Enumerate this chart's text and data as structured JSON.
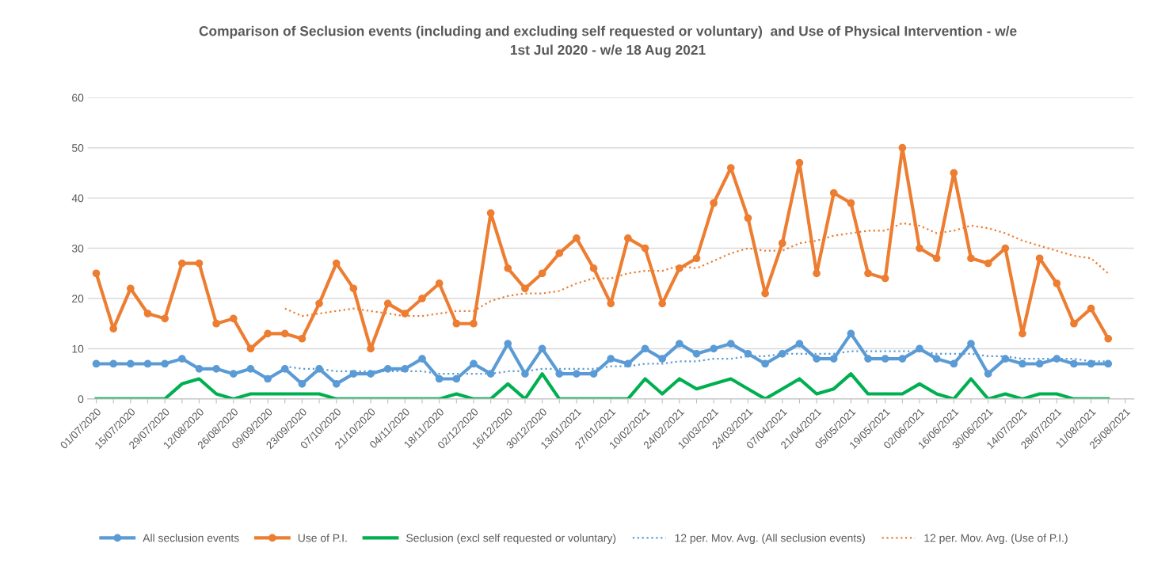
{
  "chart_data": {
    "type": "line",
    "title": "Comparison of Seclusion events (including and excluding self requested or voluntary)  and Use of Physical Intervention - w/e\n1st Jul 2020 - w/e 18 Aug 2021",
    "categories": [
      "01/07/2020",
      null,
      "15/07/2020",
      null,
      "29/07/2020",
      null,
      "12/08/2020",
      null,
      "26/08/2020",
      null,
      "09/09/2020",
      null,
      "23/09/2020",
      null,
      "07/10/2020",
      null,
      "21/10/2020",
      null,
      "04/11/2020",
      null,
      "18/11/2020",
      null,
      "02/12/2020",
      null,
      "16/12/2020",
      null,
      "30/12/2020",
      null,
      "13/01/2021",
      null,
      "27/01/2021",
      null,
      "10/02/2021",
      null,
      "24/02/2021",
      null,
      "10/03/2021",
      null,
      "24/03/2021",
      null,
      "07/04/2021",
      null,
      "21/04/2021",
      null,
      "05/05/2021",
      null,
      "19/05/2021",
      null,
      "02/06/2021",
      null,
      "16/06/2021",
      null,
      "30/06/2021",
      null,
      "14/07/2021",
      null,
      "28/07/2021",
      null,
      "11/08/2021",
      null,
      "25/08/2021"
    ],
    "series": [
      {
        "name": "All seclusion events",
        "color": "#5b9bd5",
        "marker": "circle",
        "line_style": "solid",
        "values": [
          7,
          7,
          7,
          7,
          7,
          8,
          6,
          6,
          5,
          6,
          4,
          6,
          3,
          6,
          3,
          5,
          5,
          6,
          6,
          8,
          4,
          4,
          7,
          5,
          11,
          5,
          10,
          5,
          5,
          5,
          8,
          7,
          10,
          8,
          11,
          9,
          10,
          11,
          9,
          7,
          9,
          11,
          8,
          8,
          13,
          8,
          8,
          8,
          10,
          8,
          7,
          11,
          5,
          8,
          7,
          7,
          8,
          7,
          7,
          7,
          null
        ]
      },
      {
        "name": "Use of P.I.",
        "color": "#ed7d31",
        "marker": "circle",
        "line_style": "solid",
        "values": [
          25,
          14,
          22,
          17,
          16,
          27,
          27,
          15,
          16,
          10,
          13,
          13,
          12,
          19,
          27,
          22,
          10,
          19,
          17,
          20,
          23,
          15,
          15,
          37,
          26,
          22,
          25,
          29,
          32,
          26,
          19,
          32,
          30,
          19,
          26,
          28,
          39,
          46,
          36,
          21,
          31,
          47,
          25,
          41,
          39,
          25,
          24,
          50,
          30,
          28,
          45,
          28,
          27,
          30,
          13,
          28,
          23,
          15,
          18,
          12,
          null
        ]
      },
      {
        "name": "Seclusion (excl self requested or voluntary)",
        "color": "#00b050",
        "marker": "none",
        "line_style": "solid",
        "values": [
          0,
          0,
          0,
          0,
          0,
          3,
          4,
          1,
          0,
          1,
          1,
          1,
          1,
          1,
          0,
          0,
          0,
          0,
          0,
          0,
          0,
          1,
          0,
          0,
          3,
          0,
          5,
          0,
          0,
          0,
          0,
          0,
          4,
          1,
          4,
          2,
          3,
          4,
          2,
          0,
          2,
          4,
          1,
          2,
          5,
          1,
          1,
          1,
          3,
          1,
          0,
          4,
          0,
          1,
          0,
          1,
          1,
          0,
          0,
          0,
          null
        ]
      },
      {
        "name": "12 per. Mov. Avg. (All seclusion events)",
        "color": "#5b9bd5",
        "marker": "none",
        "line_style": "dotted",
        "values": [
          null,
          null,
          null,
          null,
          null,
          null,
          null,
          null,
          null,
          null,
          null,
          6.5,
          6,
          6,
          5.5,
          5.5,
          5.5,
          5.5,
          5.5,
          5.5,
          5,
          5,
          5,
          5,
          5.5,
          5.5,
          6,
          6,
          6,
          6,
          6.5,
          6.5,
          7,
          7,
          7.5,
          7.5,
          8,
          8,
          8.5,
          8.5,
          9,
          9,
          9,
          9,
          9.5,
          9.5,
          9.5,
          9.5,
          9.5,
          9,
          9,
          9,
          8.5,
          8.5,
          8,
          8,
          8,
          8,
          7.5,
          7.5,
          null
        ]
      },
      {
        "name": "12 per. Mov. Avg. (Use of P.I.)",
        "color": "#ed7d31",
        "marker": "none",
        "line_style": "dotted",
        "values": [
          null,
          null,
          null,
          null,
          null,
          null,
          null,
          null,
          null,
          null,
          null,
          18,
          16.5,
          17,
          17.5,
          18,
          17.5,
          17,
          16.5,
          16.5,
          17,
          17.5,
          17.5,
          19.5,
          20.5,
          21,
          21,
          21.5,
          23,
          24,
          24,
          25,
          25.5,
          25.5,
          26.5,
          26,
          27.5,
          29,
          30,
          29.5,
          29.5,
          31,
          31.5,
          32.5,
          33,
          33.5,
          33.5,
          35,
          34.5,
          33,
          33.5,
          34.5,
          34,
          33,
          31.5,
          30.5,
          29.5,
          28.5,
          28,
          25,
          null
        ]
      }
    ],
    "ylim": [
      0,
      60
    ],
    "yticks": [
      0,
      10,
      20,
      30,
      40,
      50,
      60
    ],
    "grid": "y",
    "legend": "bottom"
  }
}
